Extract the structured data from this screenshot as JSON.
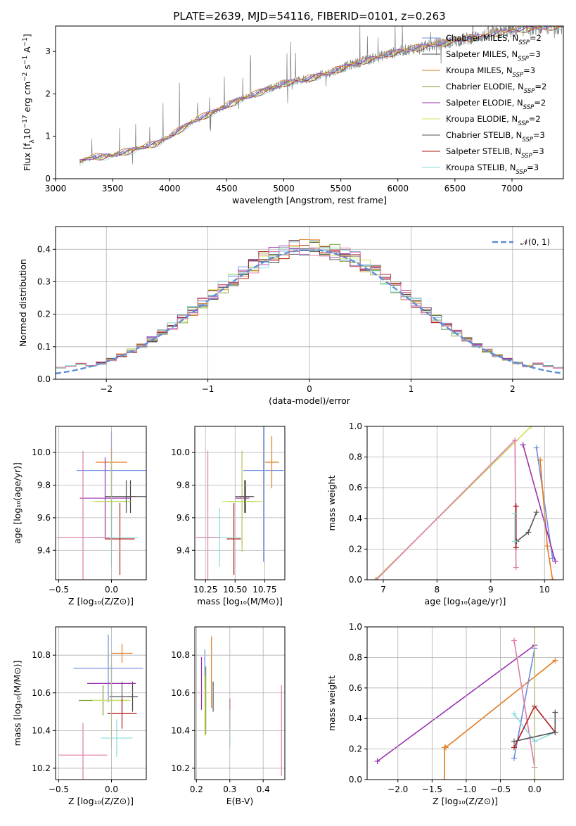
{
  "colors": {
    "chabrier_miles": "#6d8ae0",
    "salpeter_miles": "#444444",
    "kroupa_miles": "#e27b1f",
    "chabrier_elodie": "#7a9a2a",
    "salpeter_elodie": "#9a30b0",
    "kroupa_elodie": "#c8e35a",
    "chabrier_stelib": "#555555",
    "salpeter_stelib": "#b01a1a",
    "kroupa_stelib": "#86dde0",
    "pink": "#e07aa8",
    "spectrum": "#808080",
    "normal": "#5b8ed6"
  },
  "chart_data": [
    {
      "id": "spectrum",
      "type": "line",
      "title": "PLATE=2639, MJD=54116, FIBERID=0101, z=0.263",
      "xlabel": "wavelength [Angstrom, rest frame]",
      "ylabel": "Flux [f$_\\lambda$10$^{-17}$ erg cm$^{-2}$ s$^{-1}$ A$^{-1}$]",
      "ylabel_parts": [
        "Flux [f",
        "λ",
        "10",
        "−17",
        " erg cm",
        "−2",
        " s",
        "−1",
        " A",
        "−1",
        "]"
      ],
      "xlim": [
        3000,
        7450
      ],
      "ylim": [
        0,
        3.6
      ],
      "xticks": [
        "3000",
        "3500",
        "4000",
        "4500",
        "5000",
        "5500",
        "6000",
        "6500",
        "7000"
      ],
      "yticks": [
        "0",
        "1",
        "2",
        "3"
      ],
      "grid": false,
      "legend_position": "top-right",
      "legend": [
        {
          "name": "Chabrier MILES, N",
          "sub": "SSP",
          "tail": "=2",
          "color": "chabrier_miles"
        },
        {
          "name": "Salpeter MILES, N",
          "sub": "SSP",
          "tail": "=3",
          "color": "salpeter_miles"
        },
        {
          "name": "Kroupa MILES, N",
          "sub": "SSP",
          "tail": "=3",
          "color": "kroupa_miles"
        },
        {
          "name": "Chabrier ELODIE, N",
          "sub": "SSP",
          "tail": "=2",
          "color": "chabrier_elodie"
        },
        {
          "name": "Salpeter ELODIE, N",
          "sub": "SSP",
          "tail": "=2",
          "color": "salpeter_elodie"
        },
        {
          "name": "Kroupa ELODIE, N",
          "sub": "SSP",
          "tail": "=2",
          "color": "kroupa_elodie"
        },
        {
          "name": "Chabrier STELIB, N",
          "sub": "SSP",
          "tail": "=3",
          "color": "chabrier_stelib"
        },
        {
          "name": "Salpeter STELIB, N",
          "sub": "SSP",
          "tail": "=3",
          "color": "salpeter_stelib"
        },
        {
          "name": "Kroupa STELIB, N",
          "sub": "SSP",
          "tail": "=3",
          "color": "kroupa_stelib"
        }
      ],
      "continuum": {
        "x": [
          3210,
          3300,
          3500,
          3700,
          3900,
          4000,
          4200,
          4400,
          4600,
          4800,
          5000,
          5200,
          5400,
          5600,
          5800,
          6000,
          6200,
          6400,
          6600,
          6800,
          7000,
          7200,
          7450
        ],
        "y": [
          0.4,
          0.5,
          0.55,
          0.7,
          0.85,
          1.0,
          1.35,
          1.6,
          1.85,
          2.05,
          2.25,
          2.35,
          2.5,
          2.7,
          2.85,
          3.0,
          3.1,
          3.2,
          3.3,
          3.4,
          3.5,
          3.55,
          3.6
        ]
      }
    },
    {
      "id": "residuals",
      "type": "bar",
      "xlabel": "(data-model)/error",
      "ylabel": "Normed distribution",
      "xlim": [
        -2.5,
        2.5
      ],
      "ylim": [
        0,
        0.47
      ],
      "xticks": [
        "−2",
        "−1",
        "0",
        "1",
        "2"
      ],
      "yticks": [
        "0.0",
        "0.1",
        "0.2",
        "0.3",
        "0.4"
      ],
      "grid": true,
      "legend_position": "top-right",
      "legend": [
        {
          "name": "𝒩(0, 1)",
          "color": "normal"
        }
      ],
      "bin_width": 0.1
    },
    {
      "id": "z_age",
      "type": "scatter",
      "xlabel": "Z [log₁₀(Z/Z⊙)]",
      "ylabel": "age  [log₁₀(age/yr)]",
      "xlim": [
        -0.53,
        0.33
      ],
      "ylim": [
        9.22,
        10.16
      ],
      "xticks": [
        "−0.5",
        "0.0"
      ],
      "yticks": [
        "9.4",
        "9.6",
        "9.8",
        "10.0"
      ],
      "grid": true,
      "points": [
        {
          "x": 0.0,
          "y": 9.89,
          "xerr": 0.33,
          "yerr": 0.24,
          "color": "chabrier_miles"
        },
        {
          "x": 0.18,
          "y": 9.73,
          "xerr": 0.05,
          "yerr": 0.1,
          "color": "salpeter_miles"
        },
        {
          "x": 0.0,
          "y": 9.94,
          "xerr": 0.15,
          "yerr": 0.09,
          "color": "kroupa_miles"
        },
        {
          "x": 0.0,
          "y": 9.7,
          "xerr": 0.15,
          "yerr": 0.22,
          "color": "chabrier_elodie"
        },
        {
          "x": -0.06,
          "y": 9.72,
          "xerr": 0.24,
          "yerr": 0.25,
          "color": "salpeter_elodie"
        },
        {
          "x": 0.0,
          "y": 9.7,
          "xerr": 0.18,
          "yerr": 0.26,
          "color": "kroupa_elodie"
        },
        {
          "x": 0.14,
          "y": 9.73,
          "xerr": 0.2,
          "yerr": 0.1,
          "color": "chabrier_stelib"
        },
        {
          "x": 0.08,
          "y": 9.47,
          "xerr": 0.14,
          "yerr": 0.22,
          "color": "salpeter_stelib"
        },
        {
          "x": 0.0,
          "y": 9.48,
          "xerr": 0.25,
          "yerr": 0.18,
          "color": "kroupa_stelib"
        },
        {
          "x": -0.27,
          "y": 9.48,
          "xerr": 0.25,
          "yerr": 0.53,
          "color": "pink"
        }
      ]
    },
    {
      "id": "mass_age",
      "type": "scatter",
      "xlabel": "mass [log₁₀(M/M⊙)]",
      "ylabel": "",
      "xlim": [
        10.16,
        10.92
      ],
      "ylim": [
        9.22,
        10.16
      ],
      "xticks": [
        "10.25",
        "10.50",
        "10.75"
      ],
      "yticks": [
        "9.4",
        "9.6",
        "9.8",
        "10.0"
      ],
      "grid": true,
      "points": [
        {
          "x": 10.74,
          "y": 9.89,
          "xerr": 0.17,
          "yerr": 0.56,
          "color": "chabrier_miles"
        },
        {
          "x": 10.59,
          "y": 9.73,
          "xerr": 0.05,
          "yerr": 0.1,
          "color": "salpeter_miles"
        },
        {
          "x": 10.81,
          "y": 9.94,
          "xerr": 0.06,
          "yerr": 0.16,
          "color": "kroupa_miles"
        },
        {
          "x": 10.56,
          "y": 9.7,
          "xerr": 0.12,
          "yerr": 0.31,
          "color": "chabrier_elodie"
        },
        {
          "x": 10.56,
          "y": 9.72,
          "xerr": 0.06,
          "yerr": 0.29,
          "color": "salpeter_elodie"
        },
        {
          "x": 10.56,
          "y": 9.7,
          "xerr": 0.17,
          "yerr": 0.31,
          "color": "kroupa_elodie"
        },
        {
          "x": 10.58,
          "y": 9.73,
          "xerr": 0.08,
          "yerr": 0.1,
          "color": "chabrier_stelib"
        },
        {
          "x": 10.49,
          "y": 9.47,
          "xerr": 0.06,
          "yerr": 0.22,
          "color": "salpeter_stelib"
        },
        {
          "x": 10.37,
          "y": 9.48,
          "xerr": 0.18,
          "yerr": 0.18,
          "color": "kroupa_stelib"
        },
        {
          "x": 10.27,
          "y": 9.48,
          "xerr": 0.1,
          "yerr": 0.53,
          "color": "pink"
        }
      ]
    },
    {
      "id": "age_weight",
      "type": "line",
      "xlabel": "age  [log₁₀(age/yr)]",
      "ylabel": "mass weight",
      "xlim": [
        6.7,
        10.35
      ],
      "ylim": [
        0,
        1
      ],
      "xticks": [
        "7",
        "8",
        "9",
        "10"
      ],
      "yticks": [
        "0.0",
        "0.2",
        "0.4",
        "0.6",
        "0.8",
        "1.0"
      ],
      "grid": true,
      "series": [
        {
          "color": "chabrier_miles",
          "x": [
            9.85,
            10.15
          ],
          "y": [
            0.86,
            0.14
          ]
        },
        {
          "color": "kroupa_miles",
          "x": [
            9.92,
            10.05,
            10.15
          ],
          "y": [
            0.78,
            0.22,
            0.0
          ]
        },
        {
          "color": "salpeter_elodie",
          "x": [
            9.6,
            10.2
          ],
          "y": [
            0.88,
            0.12
          ]
        },
        {
          "color": "kroupa_elodie",
          "x": [
            6.85,
            9.75
          ],
          "y": [
            0.0,
            1.0
          ]
        },
        {
          "color": "pink",
          "x": [
            6.87,
            9.45,
            9.47
          ],
          "y": [
            0.0,
            0.91,
            0.08
          ]
        },
        {
          "color": "chabrier_stelib",
          "x": [
            9.48,
            9.7,
            9.85
          ],
          "y": [
            0.25,
            0.31,
            0.44
          ]
        },
        {
          "color": "salpeter_stelib",
          "x": [
            9.47,
            9.47
          ],
          "y": [
            0.21,
            0.48
          ]
        },
        {
          "color": "kroupa_stelib",
          "x": [
            9.45,
            9.45
          ],
          "y": [
            0.25,
            0.43
          ]
        }
      ]
    },
    {
      "id": "z_mass",
      "type": "scatter",
      "xlabel": "Z [log₁₀(Z/Z⊙)]",
      "ylabel": "mass [log₁₀(M/M⊙)]",
      "xlim": [
        -0.53,
        0.33
      ],
      "ylim": [
        10.14,
        10.95
      ],
      "xticks": [
        "−0.5",
        "0.0"
      ],
      "yticks": [
        "10.2",
        "10.4",
        "10.6",
        "10.8"
      ],
      "grid": true,
      "points": [
        {
          "x": -0.03,
          "y": 10.73,
          "xerr": 0.33,
          "yerr": 0.18,
          "color": "chabrier_miles"
        },
        {
          "x": 0.2,
          "y": 10.58,
          "xerr": 0.05,
          "yerr": 0.08,
          "color": "salpeter_miles"
        },
        {
          "x": 0.1,
          "y": 10.81,
          "xerr": 0.1,
          "yerr": 0.05,
          "color": "kroupa_miles"
        },
        {
          "x": -0.08,
          "y": 10.56,
          "xerr": 0.23,
          "yerr": 0.08,
          "color": "chabrier_elodie"
        },
        {
          "x": 0.0,
          "y": 10.65,
          "xerr": 0.23,
          "yerr": 0.1,
          "color": "salpeter_elodie"
        },
        {
          "x": 0.0,
          "y": 10.56,
          "xerr": 0.18,
          "yerr": 0.25,
          "color": "kroupa_elodie"
        },
        {
          "x": 0.1,
          "y": 10.58,
          "xerr": 0.12,
          "yerr": 0.08,
          "color": "chabrier_stelib"
        },
        {
          "x": 0.1,
          "y": 10.49,
          "xerr": 0.14,
          "yerr": 0.08,
          "color": "salpeter_stelib"
        },
        {
          "x": 0.05,
          "y": 10.36,
          "xerr": 0.15,
          "yerr": 0.1,
          "color": "kroupa_stelib"
        },
        {
          "x": -0.27,
          "y": 10.27,
          "xerr": 0.23,
          "yerr": 0.17,
          "color": "pink"
        }
      ]
    },
    {
      "id": "ebv_mass",
      "type": "scatter",
      "xlabel": "E(B-V)",
      "ylabel": "",
      "xlim": [
        0.195,
        0.465
      ],
      "ylim": [
        10.14,
        10.95
      ],
      "xticks": [
        "0.2",
        "0.3",
        "0.4"
      ],
      "yticks": [
        "10.2",
        "10.4",
        "10.6",
        "10.8"
      ],
      "grid": true,
      "points": [
        {
          "x": 0.225,
          "y": 10.73,
          "xerr": 0,
          "yerr": 0.1,
          "color": "chabrier_miles"
        },
        {
          "x": 0.245,
          "y": 10.71,
          "xerr": 0,
          "yerr": 0.19,
          "color": "kroupa_miles"
        },
        {
          "x": 0.228,
          "y": 10.56,
          "xerr": 0,
          "yerr": 0.18,
          "color": "chabrier_elodie"
        },
        {
          "x": 0.215,
          "y": 10.65,
          "xerr": 0,
          "yerr": 0.14,
          "color": "salpeter_elodie"
        },
        {
          "x": 0.225,
          "y": 10.53,
          "xerr": 0,
          "yerr": 0.16,
          "color": "kroupa_elodie"
        },
        {
          "x": 0.25,
          "y": 10.58,
          "xerr": 0,
          "yerr": 0.08,
          "color": "chabrier_stelib"
        },
        {
          "x": 0.3,
          "y": 10.49,
          "xerr": 0,
          "yerr": 0.08,
          "color": "salpeter_stelib"
        },
        {
          "x": 0.3,
          "y": 10.41,
          "xerr": 0,
          "yerr": 0.1,
          "color": "kroupa_stelib"
        },
        {
          "x": 0.455,
          "y": 10.4,
          "xerr": 0,
          "yerr": 0.24,
          "color": "pink"
        }
      ]
    },
    {
      "id": "z_weight",
      "type": "line",
      "xlabel": "Z [log₁₀(Z/Z⊙)]",
      "ylabel": "mass weight",
      "xlim": [
        -2.45,
        0.42
      ],
      "ylim": [
        0,
        1
      ],
      "xticks": [
        "−2.0",
        "−1.5",
        "−1.0",
        "−0.5",
        "0.0"
      ],
      "yticks": [
        "0.0",
        "0.2",
        "0.4",
        "0.6",
        "0.8",
        "1.0"
      ],
      "grid": true,
      "series": [
        {
          "color": "salpeter_elodie",
          "x": [
            -2.3,
            0.0
          ],
          "y": [
            0.12,
            0.88
          ]
        },
        {
          "color": "kroupa_miles",
          "x": [
            -1.32,
            -1.32,
            -1.3,
            0.3
          ],
          "y": [
            0.0,
            0.21,
            0.21,
            0.78
          ]
        },
        {
          "color": "chabrier_miles",
          "x": [
            -0.3,
            0.0
          ],
          "y": [
            0.14,
            0.86
          ]
        },
        {
          "color": "pink",
          "x": [
            -0.3,
            0.0,
            0.0
          ],
          "y": [
            0.91,
            0.08,
            0.0
          ]
        },
        {
          "color": "kroupa_elodie",
          "x": [
            0.0,
            0.0
          ],
          "y": [
            0.0,
            1.0
          ]
        },
        {
          "color": "kroupa_stelib",
          "x": [
            -0.3,
            0.0,
            0.3
          ],
          "y": [
            0.43,
            0.25,
            0.31
          ]
        },
        {
          "color": "salpeter_stelib",
          "x": [
            -0.3,
            0.0,
            0.3
          ],
          "y": [
            0.21,
            0.48,
            0.31
          ]
        },
        {
          "color": "chabrier_stelib",
          "x": [
            -0.3,
            0.3,
            0.3
          ],
          "y": [
            0.25,
            0.31,
            0.44
          ]
        }
      ]
    }
  ]
}
